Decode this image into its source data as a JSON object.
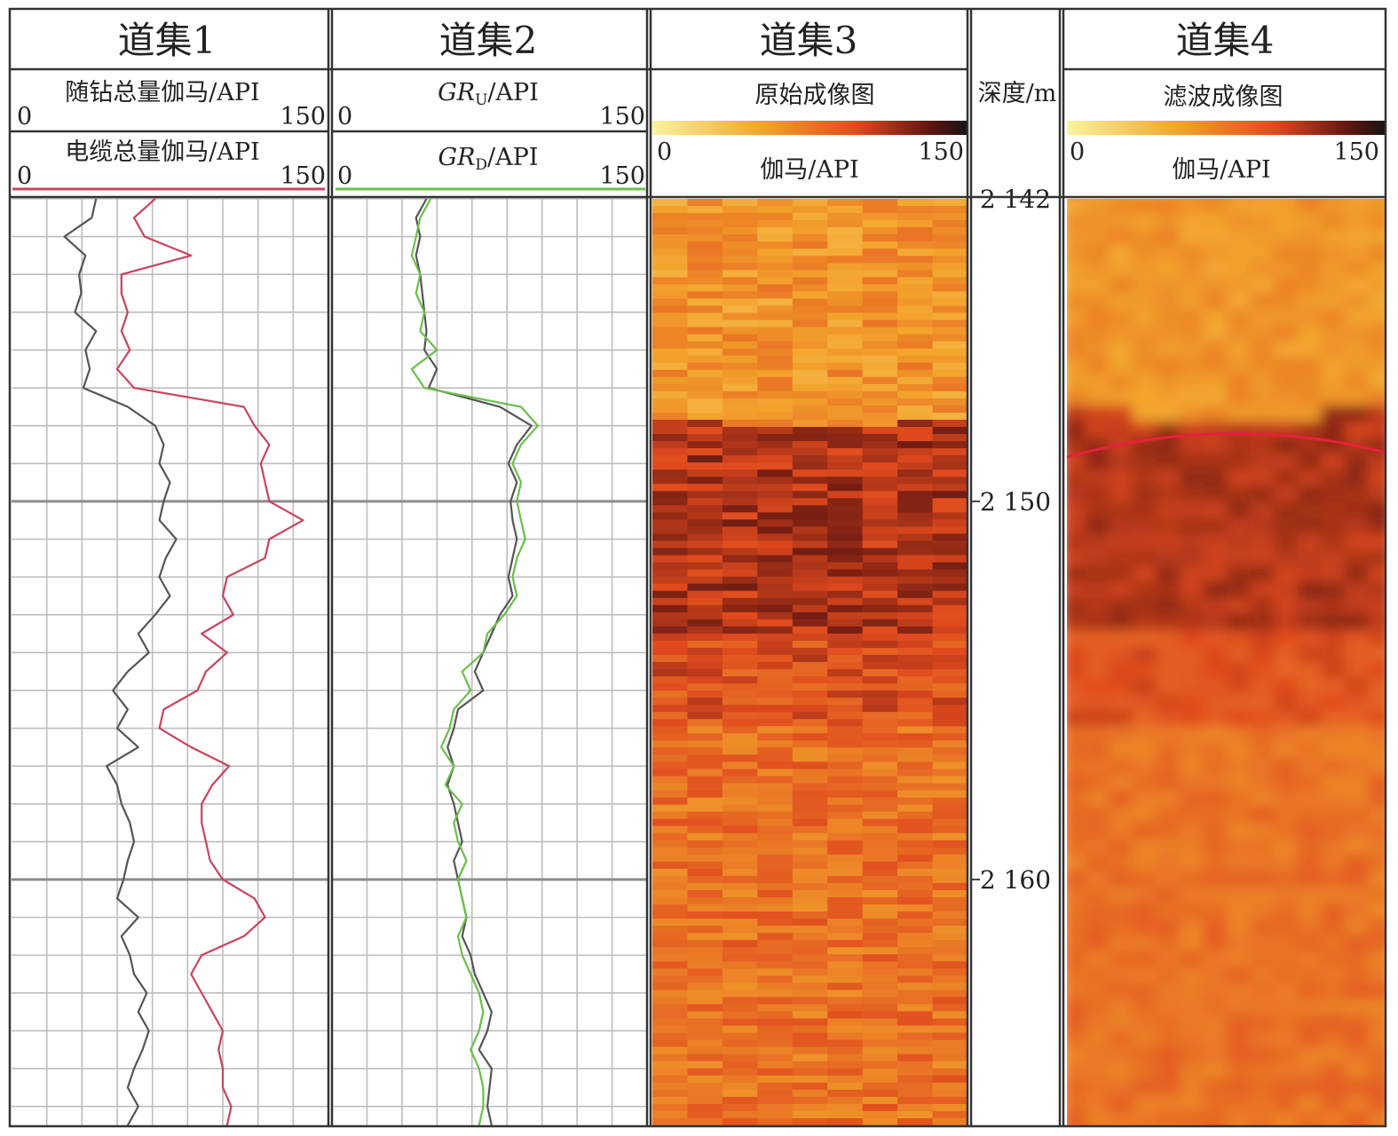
{
  "chart_data": {
    "type": "line",
    "tracks": [
      {
        "title": "道集1",
        "curves": [
          {
            "label": "随钻总量伽马/API",
            "scale_min": "0",
            "scale_max": "150",
            "color": "#555555"
          },
          {
            "label": "电缆总量伽马/API",
            "scale_min": "0",
            "scale_max": "150",
            "color": "#c8445f"
          }
        ]
      },
      {
        "title": "道集2",
        "curves": [
          {
            "label_base": "GR",
            "label_sub": "U",
            "label_unit": "/API",
            "scale_min": "0",
            "scale_max": "150",
            "color": "#555555"
          },
          {
            "label_base": "GR",
            "label_sub": "D",
            "label_unit": "/API",
            "scale_min": "0",
            "scale_max": "150",
            "color": "#6abf4b"
          }
        ]
      },
      {
        "title": "道集3",
        "image_label": "原始成像图",
        "colorbar_label": "伽马/API",
        "scale_min": "0",
        "scale_max": "150"
      },
      {
        "title": "道集4",
        "image_label": "滤波成像图",
        "colorbar_label": "伽马/API",
        "scale_min": "0",
        "scale_max": "150"
      }
    ],
    "depth_track": {
      "label": "深度/m",
      "range": [
        2142,
        2166.5
      ],
      "ticks": [
        {
          "value": 2142,
          "label": "2 142"
        },
        {
          "value": 2150,
          "label": "2 150"
        },
        {
          "value": 2160,
          "label": "2 160"
        }
      ]
    },
    "colormap": [
      "#f8f4a0",
      "#f3a42c",
      "#e04a1e",
      "#611511",
      "#141414"
    ],
    "boundary_depth": 2148.3,
    "series": [
      {
        "name": "随钻总量伽马/API",
        "depth": [
          2142.0,
          2142.5,
          2143.0,
          2143.5,
          2144.0,
          2144.5,
          2145.0,
          2145.5,
          2146.0,
          2146.5,
          2147.0,
          2147.5,
          2148.0,
          2148.5,
          2149.0,
          2149.5,
          2150.0,
          2150.5,
          2151.0,
          2151.5,
          2152.0,
          2152.5,
          2153.0,
          2153.5,
          2154.0,
          2154.5,
          2155.0,
          2155.5,
          2156.0,
          2156.5,
          2157.0,
          2157.5,
          2158.0,
          2158.5,
          2159.0,
          2159.5,
          2160.0,
          2160.5,
          2161.0,
          2161.5,
          2162.0,
          2162.5,
          2163.0,
          2163.5,
          2164.0,
          2164.5,
          2165.0,
          2165.5,
          2166.0,
          2166.5
        ],
        "gr": [
          40,
          38,
          25,
          35,
          32,
          33,
          30,
          40,
          35,
          37,
          34,
          55,
          68,
          72,
          70,
          75,
          72,
          70,
          78,
          73,
          70,
          75,
          68,
          60,
          65,
          55,
          48,
          55,
          50,
          60,
          45,
          50,
          52,
          56,
          58,
          55,
          53,
          50,
          60,
          52,
          56,
          58,
          64,
          60,
          65,
          62,
          58,
          55,
          60,
          55
        ]
      },
      {
        "name": "电缆总量伽马/API",
        "depth": [
          2142.0,
          2142.5,
          2143.0,
          2143.5,
          2144.0,
          2144.5,
          2145.0,
          2145.5,
          2146.0,
          2146.5,
          2147.0,
          2147.5,
          2148.0,
          2148.5,
          2149.0,
          2149.5,
          2150.0,
          2150.5,
          2151.0,
          2151.5,
          2152.0,
          2152.5,
          2153.0,
          2153.5,
          2154.0,
          2154.5,
          2155.0,
          2155.5,
          2156.0,
          2156.5,
          2157.0,
          2157.5,
          2158.0,
          2158.5,
          2159.0,
          2159.5,
          2160.0,
          2160.5,
          2161.0,
          2161.5,
          2162.0,
          2162.5,
          2163.0,
          2163.5,
          2164.0,
          2164.5,
          2165.0,
          2165.5,
          2166.0,
          2166.5
        ],
        "gr": [
          68,
          58,
          63,
          85,
          52,
          52,
          55,
          52,
          56,
          50,
          58,
          110,
          115,
          122,
          118,
          120,
          122,
          138,
          122,
          120,
          102,
          100,
          105,
          90,
          102,
          92,
          88,
          72,
          70,
          85,
          103,
          95,
          90,
          90,
          92,
          94,
          100,
          115,
          120,
          110,
          90,
          85,
          90,
          95,
          100,
          98,
          100,
          100,
          104,
          102
        ]
      },
      {
        "name": "GR_U",
        "depth": [
          2142.0,
          2142.5,
          2143.0,
          2143.5,
          2144.0,
          2144.5,
          2145.0,
          2145.5,
          2146.0,
          2146.5,
          2147.0,
          2147.5,
          2148.0,
          2148.5,
          2149.0,
          2149.5,
          2150.0,
          2150.5,
          2151.0,
          2151.5,
          2152.0,
          2152.5,
          2153.0,
          2153.5,
          2154.0,
          2154.5,
          2155.0,
          2155.5,
          2156.0,
          2156.5,
          2157.0,
          2157.5,
          2158.0,
          2158.5,
          2159.0,
          2159.5,
          2160.0,
          2160.5,
          2161.0,
          2161.5,
          2162.0,
          2162.5,
          2163.0,
          2163.5,
          2164.0,
          2164.5,
          2165.0,
          2165.5,
          2166.0,
          2166.5
        ],
        "gr": [
          45,
          40,
          42,
          40,
          42,
          43,
          44,
          45,
          44,
          50,
          46,
          80,
          95,
          88,
          84,
          88,
          85,
          86,
          88,
          86,
          84,
          86,
          80,
          76,
          72,
          68,
          72,
          60,
          58,
          55,
          58,
          55,
          58,
          60,
          62,
          58,
          60,
          62,
          64,
          62,
          66,
          68,
          72,
          76,
          74,
          70,
          76,
          75,
          74,
          76
        ]
      },
      {
        "name": "GR_D",
        "depth": [
          2142.0,
          2142.5,
          2143.0,
          2143.5,
          2144.0,
          2144.5,
          2145.0,
          2145.5,
          2146.0,
          2146.5,
          2147.0,
          2147.5,
          2148.0,
          2148.5,
          2149.0,
          2149.5,
          2150.0,
          2150.5,
          2151.0,
          2151.5,
          2152.0,
          2152.5,
          2153.0,
          2153.5,
          2154.0,
          2154.5,
          2155.0,
          2155.5,
          2156.0,
          2156.5,
          2157.0,
          2157.5,
          2158.0,
          2158.5,
          2159.0,
          2159.5,
          2160.0,
          2160.5,
          2161.0,
          2161.5,
          2162.0,
          2162.5,
          2163.0,
          2163.5,
          2164.0,
          2164.5,
          2165.0,
          2165.5,
          2166.0,
          2166.5
        ],
        "gr": [
          47,
          42,
          40,
          38,
          42,
          40,
          44,
          42,
          50,
          38,
          44,
          90,
          98,
          90,
          86,
          90,
          88,
          90,
          92,
          88,
          86,
          88,
          82,
          74,
          72,
          62,
          66,
          58,
          56,
          52,
          58,
          54,
          62,
          58,
          60,
          64,
          60,
          62,
          64,
          60,
          62,
          66,
          70,
          72,
          70,
          66,
          70,
          72,
          72,
          70
        ]
      }
    ]
  }
}
